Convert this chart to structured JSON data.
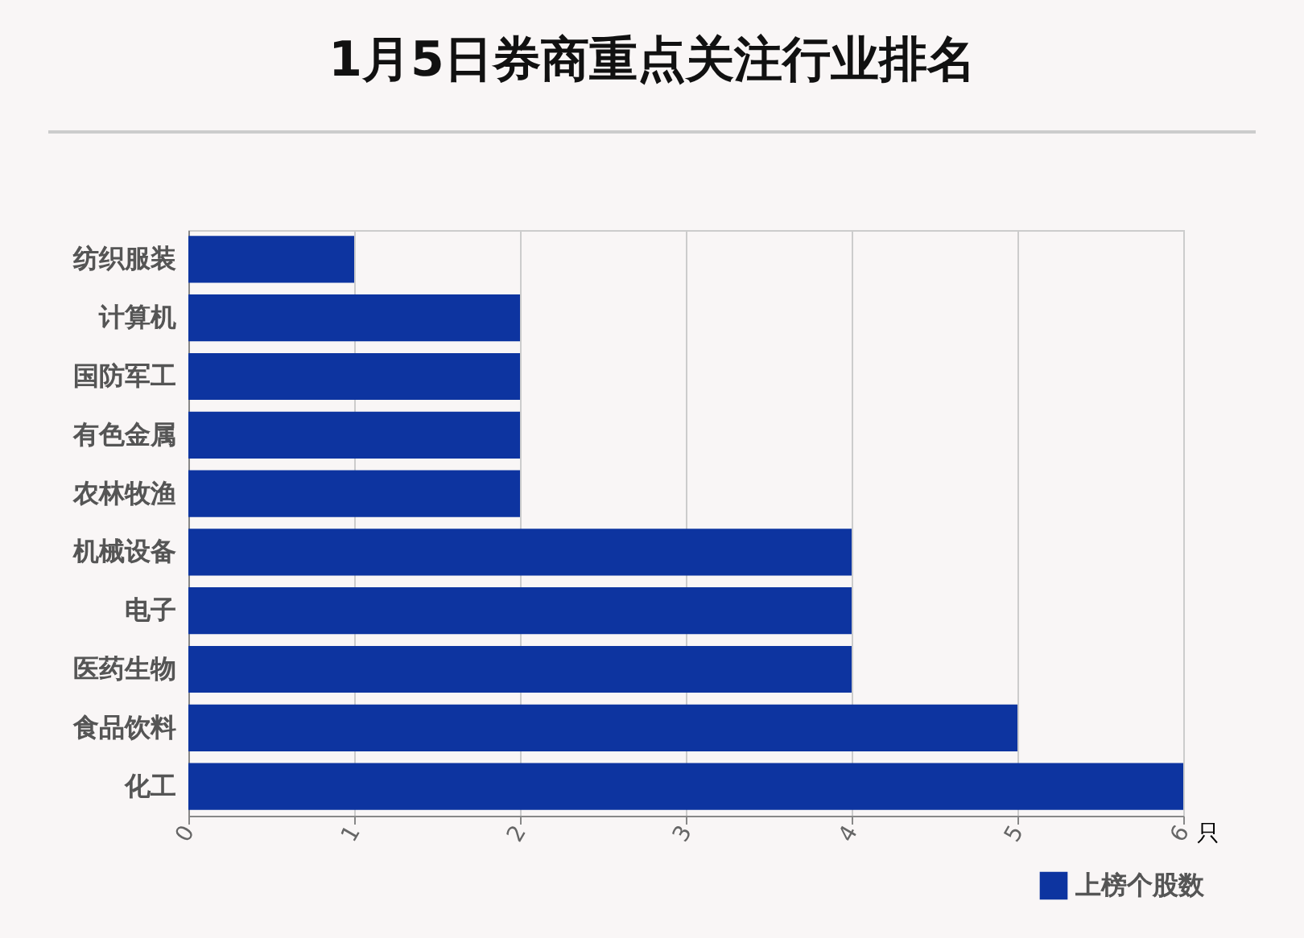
{
  "chart_data": {
    "type": "bar",
    "orientation": "horizontal",
    "title": "1月5日券商重点关注行业排名",
    "xlabel": "只",
    "categories": [
      "纺织服装",
      "计算机",
      "国防军工",
      "有色金属",
      "农林牧渔",
      "机械设备",
      "电子",
      "医药生物",
      "食品饮料",
      "化工"
    ],
    "series": [
      {
        "name": "上榜个股数",
        "color": "#0d34a0",
        "values": [
          1,
          2,
          2,
          2,
          2,
          4,
          4,
          4,
          5,
          6
        ]
      }
    ],
    "xlim": [
      0,
      6
    ],
    "xticks": [
      0,
      1,
      2,
      3,
      4,
      5,
      6
    ],
    "grid": "x",
    "legend": "bottom right"
  }
}
